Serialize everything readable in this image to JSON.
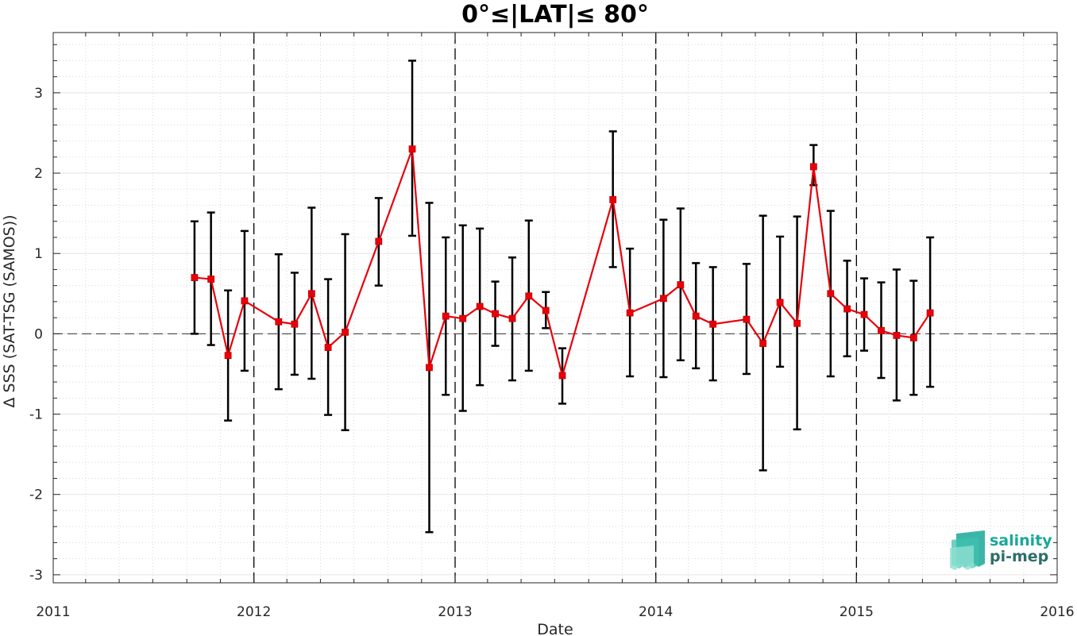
{
  "chart_data": {
    "type": "line",
    "title": "0°≤|LAT|≤ 80°",
    "xlabel": "Date",
    "ylabel": "Δ SSS (SAT-TSG (SAMOS))",
    "xlim": [
      "2011-01-01",
      "2016-01-01"
    ],
    "ylim": [
      -3.1,
      3.75
    ],
    "x_ticks": [
      "2011",
      "2012",
      "2013",
      "2014",
      "2015",
      "2016"
    ],
    "y_ticks": [
      "-3",
      "-2",
      "-1",
      "0",
      "1",
      "2",
      "3"
    ],
    "grid": true,
    "reference_line_y": 0,
    "year_separators": [
      "2012",
      "2013",
      "2014",
      "2015"
    ],
    "series": [
      {
        "color": "#e8000b",
        "error_bar_color": "#000000",
        "points": [
          {
            "x": "2011-09-15",
            "y": 0.7,
            "low": 0.0,
            "high": 1.4
          },
          {
            "x": "2011-10-15",
            "y": 0.68,
            "low": -0.14,
            "high": 1.51
          },
          {
            "x": "2011-11-15",
            "y": -0.27,
            "low": -1.08,
            "high": 0.54
          },
          {
            "x": "2011-12-15",
            "y": 0.41,
            "low": -0.46,
            "high": 1.28
          },
          {
            "x": "2012-02-15",
            "y": 0.15,
            "low": -0.69,
            "high": 0.99
          },
          {
            "x": "2012-03-15",
            "y": 0.12,
            "low": -0.51,
            "high": 0.76
          },
          {
            "x": "2012-04-15",
            "y": 0.5,
            "low": -0.56,
            "high": 1.57
          },
          {
            "x": "2012-05-15",
            "y": -0.17,
            "low": -1.01,
            "high": 0.68
          },
          {
            "x": "2012-06-15",
            "y": 0.02,
            "low": -1.2,
            "high": 1.24
          },
          {
            "x": "2012-08-15",
            "y": 1.15,
            "low": 0.6,
            "high": 1.69
          },
          {
            "x": "2012-10-15",
            "y": 2.3,
            "low": 1.22,
            "high": 3.4
          },
          {
            "x": "2012-11-15",
            "y": -0.42,
            "low": -2.47,
            "high": 1.63
          },
          {
            "x": "2012-12-15",
            "y": 0.22,
            "low": -0.76,
            "high": 1.2
          },
          {
            "x": "2013-01-15",
            "y": 0.19,
            "low": -0.96,
            "high": 1.35
          },
          {
            "x": "2013-02-15",
            "y": 0.34,
            "low": -0.64,
            "high": 1.31
          },
          {
            "x": "2013-03-15",
            "y": 0.25,
            "low": -0.15,
            "high": 0.65
          },
          {
            "x": "2013-04-15",
            "y": 0.19,
            "low": -0.58,
            "high": 0.95
          },
          {
            "x": "2013-05-15",
            "y": 0.47,
            "low": -0.46,
            "high": 1.41
          },
          {
            "x": "2013-06-15",
            "y": 0.29,
            "low": 0.07,
            "high": 0.52
          },
          {
            "x": "2013-07-15",
            "y": -0.52,
            "low": -0.87,
            "high": -0.18
          },
          {
            "x": "2013-10-15",
            "y": 1.67,
            "low": 0.83,
            "high": 2.52
          },
          {
            "x": "2013-11-15",
            "y": 0.26,
            "low": -0.53,
            "high": 1.06
          },
          {
            "x": "2014-01-15",
            "y": 0.44,
            "low": -0.54,
            "high": 1.42
          },
          {
            "x": "2014-02-15",
            "y": 0.61,
            "low": -0.33,
            "high": 1.56
          },
          {
            "x": "2014-03-15",
            "y": 0.22,
            "low": -0.43,
            "high": 0.88
          },
          {
            "x": "2014-04-15",
            "y": 0.12,
            "low": -0.58,
            "high": 0.83
          },
          {
            "x": "2014-06-15",
            "y": 0.18,
            "low": -0.5,
            "high": 0.87
          },
          {
            "x": "2014-07-15",
            "y": -0.12,
            "low": -1.7,
            "high": 1.47
          },
          {
            "x": "2014-08-15",
            "y": 0.39,
            "low": -0.41,
            "high": 1.21
          },
          {
            "x": "2014-09-15",
            "y": 0.13,
            "low": -1.19,
            "high": 1.46
          },
          {
            "x": "2014-10-15",
            "y": 2.08,
            "low": 1.85,
            "high": 2.35
          },
          {
            "x": "2014-11-15",
            "y": 0.5,
            "low": -0.53,
            "high": 1.53
          },
          {
            "x": "2014-12-15",
            "y": 0.31,
            "low": -0.28,
            "high": 0.91
          },
          {
            "x": "2015-01-15",
            "y": 0.24,
            "low": -0.21,
            "high": 0.69
          },
          {
            "x": "2015-02-15",
            "y": 0.04,
            "low": -0.55,
            "high": 0.64
          },
          {
            "x": "2015-03-15",
            "y": -0.02,
            "low": -0.83,
            "high": 0.8
          },
          {
            "x": "2015-04-15",
            "y": -0.05,
            "low": -0.76,
            "high": 0.66
          },
          {
            "x": "2015-05-15",
            "y": 0.26,
            "low": -0.66,
            "high": 1.2
          }
        ]
      }
    ]
  },
  "logo": {
    "line1": "salinity",
    "line2": "pi-mep",
    "color1": "#1aa89a",
    "color2": "#2d6e69"
  }
}
